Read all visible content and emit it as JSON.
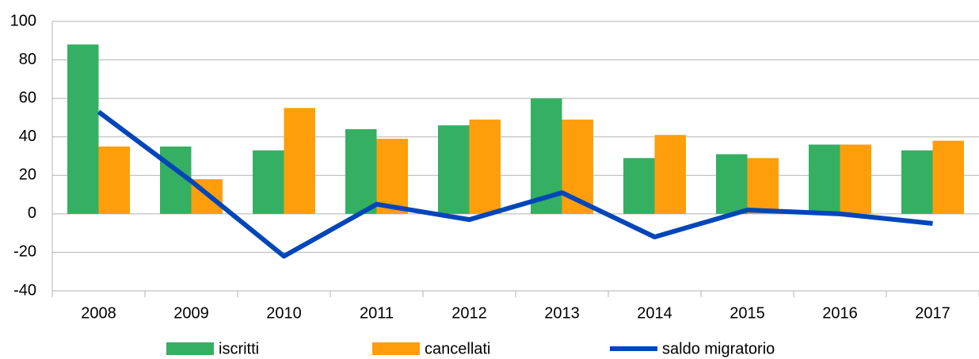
{
  "chart_data": {
    "type": "bar",
    "categories": [
      "2008",
      "2009",
      "2010",
      "2011",
      "2012",
      "2013",
      "2014",
      "2015",
      "2016",
      "2017"
    ],
    "series": [
      {
        "name": "iscritti",
        "type": "bar",
        "color": "#35b062",
        "values": [
          88,
          35,
          33,
          44,
          46,
          60,
          29,
          31,
          36,
          33
        ]
      },
      {
        "name": "cancellati",
        "type": "bar",
        "color": "#ff9e0b",
        "values": [
          35,
          18,
          55,
          39,
          49,
          49,
          41,
          29,
          36,
          38
        ]
      },
      {
        "name": "saldo migratorio",
        "type": "line",
        "color": "#0046b8",
        "values": [
          53,
          17,
          -22,
          5,
          -3,
          11,
          -12,
          2,
          0,
          -5
        ]
      }
    ],
    "ylim": [
      -40,
      100
    ],
    "yticks": [
      -40,
      -20,
      0,
      20,
      40,
      60,
      80,
      100
    ],
    "grid": true,
    "legend": "bottom"
  }
}
